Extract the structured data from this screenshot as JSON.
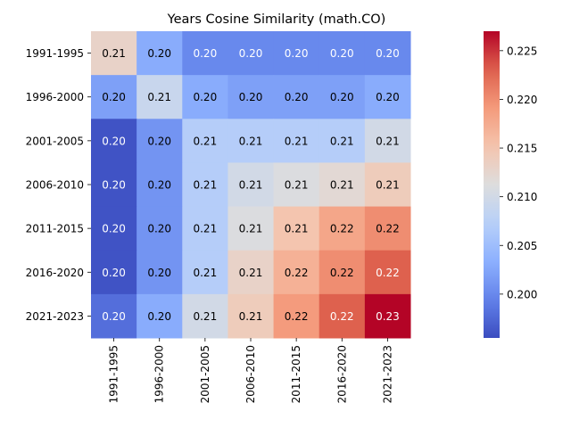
{
  "chart_data": {
    "type": "heatmap",
    "title": "Years Cosine Similarity (math.CO)",
    "colormap": "coolwarm",
    "rows": [
      "1991-1995",
      "1996-2000",
      "2001-2005",
      "2006-2010",
      "2011-2015",
      "2016-2020",
      "2021-2023"
    ],
    "columns": [
      "1991-1995",
      "1996-2000",
      "2001-2005",
      "2006-2010",
      "2011-2015",
      "2016-2020",
      "2021-2023"
    ],
    "values": [
      [
        0.213,
        0.203,
        0.2,
        0.2,
        0.2,
        0.2,
        0.2
      ],
      [
        0.202,
        0.209,
        0.203,
        0.202,
        0.202,
        0.202,
        0.203
      ],
      [
        0.196,
        0.201,
        0.207,
        0.207,
        0.207,
        0.207,
        0.21
      ],
      [
        0.196,
        0.201,
        0.207,
        0.21,
        0.211,
        0.212,
        0.214
      ],
      [
        0.196,
        0.201,
        0.207,
        0.211,
        0.215,
        0.218,
        0.22
      ],
      [
        0.196,
        0.201,
        0.207,
        0.213,
        0.217,
        0.22,
        0.223
      ],
      [
        0.198,
        0.203,
        0.21,
        0.214,
        0.219,
        0.223,
        0.227
      ]
    ],
    "annotations": [
      [
        "0.21",
        "0.20",
        "0.20",
        "0.20",
        "0.20",
        "0.20",
        "0.20"
      ],
      [
        "0.20",
        "0.21",
        "0.20",
        "0.20",
        "0.20",
        "0.20",
        "0.20"
      ],
      [
        "0.20",
        "0.20",
        "0.21",
        "0.21",
        "0.21",
        "0.21",
        "0.21"
      ],
      [
        "0.20",
        "0.20",
        "0.21",
        "0.21",
        "0.21",
        "0.21",
        "0.21"
      ],
      [
        "0.20",
        "0.20",
        "0.21",
        "0.21",
        "0.21",
        "0.22",
        "0.22"
      ],
      [
        "0.20",
        "0.20",
        "0.21",
        "0.21",
        "0.22",
        "0.22",
        "0.22"
      ],
      [
        "0.20",
        "0.20",
        "0.21",
        "0.21",
        "0.22",
        "0.22",
        "0.23"
      ]
    ],
    "colorbar": {
      "vmin": 0.1955,
      "vmax": 0.227,
      "ticks": [
        "0.200",
        "0.205",
        "0.210",
        "0.215",
        "0.220",
        "0.225"
      ],
      "tick_values": [
        0.2,
        0.205,
        0.21,
        0.215,
        0.22,
        0.225
      ]
    }
  }
}
